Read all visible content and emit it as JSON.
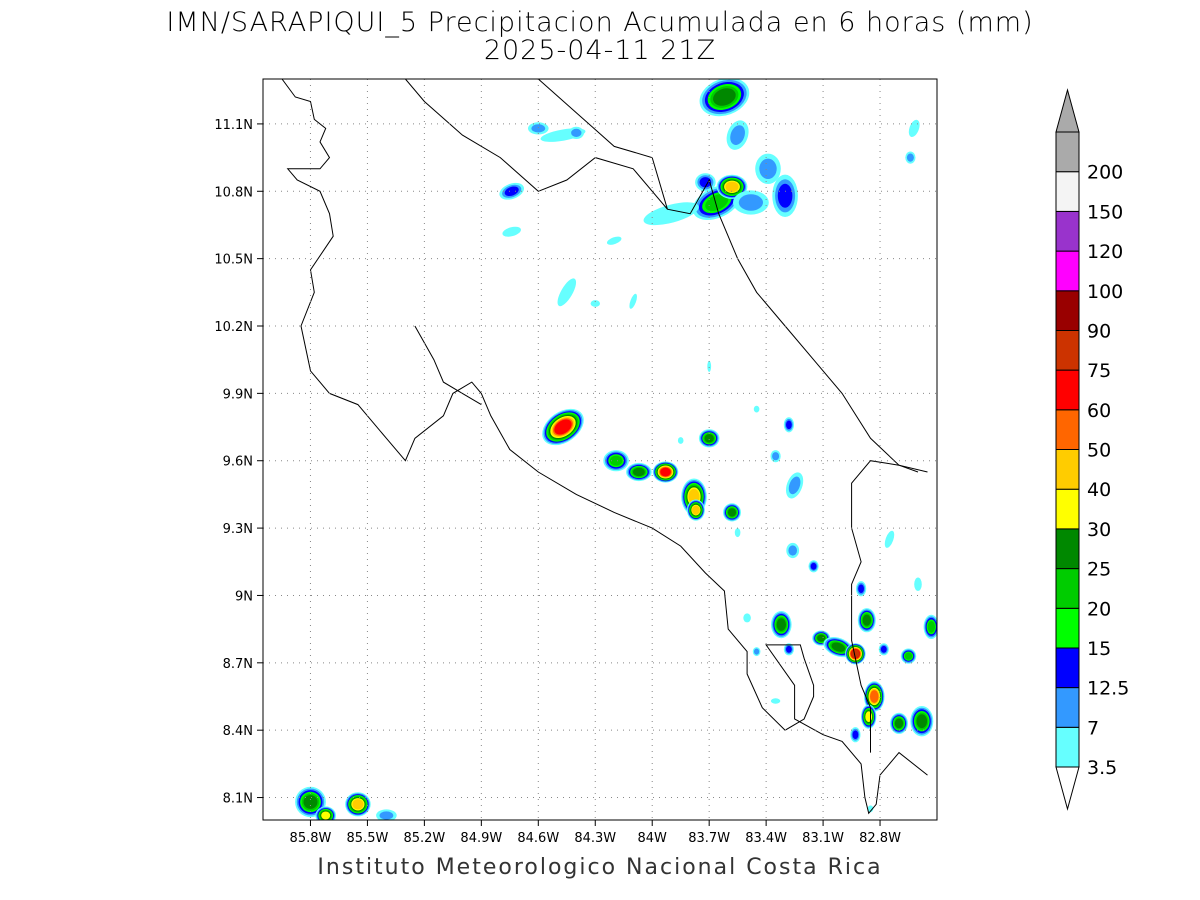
{
  "title_line1": "IMN/SARAPIQUI_5 Precipitacion Acumulada en 6 horas (mm)",
  "title_line2": "2025-04-11 21Z",
  "footer": "Instituto Meteorologico Nacional Costa Rica",
  "map": {
    "lon_range": [
      -86.05,
      -82.5
    ],
    "lat_range": [
      8.0,
      11.3
    ],
    "lat_ticks": [
      {
        "value": 11.1,
        "label": "11.1N"
      },
      {
        "value": 10.8,
        "label": "10.8N"
      },
      {
        "value": 10.5,
        "label": "10.5N"
      },
      {
        "value": 10.2,
        "label": "10.2N"
      },
      {
        "value": 9.9,
        "label": "9.9N"
      },
      {
        "value": 9.6,
        "label": "9.6N"
      },
      {
        "value": 9.3,
        "label": "9.3N"
      },
      {
        "value": 9.0,
        "label": "9N"
      },
      {
        "value": 8.7,
        "label": "8.7N"
      },
      {
        "value": 8.4,
        "label": "8.4N"
      },
      {
        "value": 8.1,
        "label": "8.1N"
      }
    ],
    "lon_ticks": [
      {
        "value": -85.8,
        "label": "85.8W"
      },
      {
        "value": -85.5,
        "label": "85.5W"
      },
      {
        "value": -85.2,
        "label": "85.2W"
      },
      {
        "value": -84.9,
        "label": "84.9W"
      },
      {
        "value": -84.6,
        "label": "84.6W"
      },
      {
        "value": -84.3,
        "label": "84.3W"
      },
      {
        "value": -84.0,
        "label": "84W"
      },
      {
        "value": -83.7,
        "label": "83.7W"
      },
      {
        "value": -83.4,
        "label": "83.4W"
      },
      {
        "value": -83.1,
        "label": "83.1W"
      },
      {
        "value": -82.8,
        "label": "82.8W"
      }
    ],
    "grid": true
  },
  "legend": {
    "levels": [
      {
        "label": "3.5",
        "color": "#66ffff"
      },
      {
        "label": "7",
        "color": "#3399ff"
      },
      {
        "label": "12.5",
        "color": "#0000ff"
      },
      {
        "label": "15",
        "color": "#00ff00"
      },
      {
        "label": "20",
        "color": "#00cc00"
      },
      {
        "label": "25",
        "color": "#008800"
      },
      {
        "label": "30",
        "color": "#ffff00"
      },
      {
        "label": "40",
        "color": "#ffcc00"
      },
      {
        "label": "50",
        "color": "#ff6600"
      },
      {
        "label": "60",
        "color": "#ff0000"
      },
      {
        "label": "75",
        "color": "#cc3300"
      },
      {
        "label": "90",
        "color": "#990000"
      },
      {
        "label": "100",
        "color": "#ff00ff"
      },
      {
        "label": "120",
        "color": "#9933cc"
      },
      {
        "label": "150",
        "color": "#f4f4f4"
      },
      {
        "label": "200",
        "color": "#aaaaaa"
      }
    ]
  },
  "precip_cells": [
    {
      "lon": -84.47,
      "lat": 9.75,
      "rx": 0.09,
      "ry": 0.05,
      "rot": -35,
      "max": 60
    },
    {
      "lon": -84.19,
      "lat": 9.6,
      "rx": 0.05,
      "ry": 0.035,
      "rot": 0,
      "max": 20
    },
    {
      "lon": -84.07,
      "lat": 9.55,
      "rx": 0.05,
      "ry": 0.03,
      "rot": 0,
      "max": 25
    },
    {
      "lon": -83.93,
      "lat": 9.55,
      "rx": 0.05,
      "ry": 0.035,
      "rot": 0,
      "max": 60
    },
    {
      "lon": -83.78,
      "lat": 9.44,
      "rx": 0.05,
      "ry": 0.06,
      "rot": 0,
      "max": 40
    },
    {
      "lon": -83.77,
      "lat": 9.38,
      "rx": 0.035,
      "ry": 0.035,
      "rot": 0,
      "max": 40
    },
    {
      "lon": -83.58,
      "lat": 9.37,
      "rx": 0.035,
      "ry": 0.03,
      "rot": 0,
      "max": 25
    },
    {
      "lon": -83.7,
      "lat": 9.7,
      "rx": 0.04,
      "ry": 0.03,
      "rot": 0,
      "max": 25
    },
    {
      "lon": -83.66,
      "lat": 10.75,
      "rx": 0.1,
      "ry": 0.05,
      "rot": -25,
      "max": 20
    },
    {
      "lon": -83.58,
      "lat": 10.82,
      "rx": 0.06,
      "ry": 0.04,
      "rot": 0,
      "max": 40
    },
    {
      "lon": -83.62,
      "lat": 11.22,
      "rx": 0.1,
      "ry": 0.06,
      "rot": -20,
      "max": 25
    },
    {
      "lon": -83.72,
      "lat": 10.84,
      "rx": 0.04,
      "ry": 0.03,
      "rot": 0,
      "max": 12.5
    },
    {
      "lon": -84.74,
      "lat": 10.8,
      "rx": 0.05,
      "ry": 0.025,
      "rot": -20,
      "max": 12.5
    },
    {
      "lon": -83.32,
      "lat": 8.87,
      "rx": 0.04,
      "ry": 0.045,
      "rot": 0,
      "max": 25
    },
    {
      "lon": -83.11,
      "lat": 8.81,
      "rx": 0.035,
      "ry": 0.025,
      "rot": 0,
      "max": 25
    },
    {
      "lon": -83.02,
      "lat": 8.77,
      "rx": 0.06,
      "ry": 0.03,
      "rot": 20,
      "max": 25
    },
    {
      "lon": -82.93,
      "lat": 8.74,
      "rx": 0.04,
      "ry": 0.035,
      "rot": 0,
      "max": 75
    },
    {
      "lon": -82.87,
      "lat": 8.89,
      "rx": 0.035,
      "ry": 0.04,
      "rot": 0,
      "max": 25
    },
    {
      "lon": -82.83,
      "lat": 8.55,
      "rx": 0.04,
      "ry": 0.05,
      "rot": 0,
      "max": 50
    },
    {
      "lon": -82.86,
      "lat": 8.46,
      "rx": 0.03,
      "ry": 0.04,
      "rot": 0,
      "max": 30
    },
    {
      "lon": -82.7,
      "lat": 8.43,
      "rx": 0.035,
      "ry": 0.035,
      "rot": 0,
      "max": 25
    },
    {
      "lon": -82.58,
      "lat": 8.44,
      "rx": 0.045,
      "ry": 0.05,
      "rot": 0,
      "max": 25
    },
    {
      "lon": -82.65,
      "lat": 8.73,
      "rx": 0.03,
      "ry": 0.025,
      "rot": 0,
      "max": 20
    },
    {
      "lon": -82.53,
      "lat": 8.86,
      "rx": 0.03,
      "ry": 0.04,
      "rot": 0,
      "max": 20
    },
    {
      "lon": -85.8,
      "lat": 8.08,
      "rx": 0.06,
      "ry": 0.05,
      "rot": 0,
      "max": 25
    },
    {
      "lon": -85.55,
      "lat": 8.07,
      "rx": 0.05,
      "ry": 0.04,
      "rot": 0,
      "max": 40
    },
    {
      "lon": -85.72,
      "lat": 8.02,
      "rx": 0.04,
      "ry": 0.03,
      "rot": 0,
      "max": 30
    },
    {
      "lon": -83.9,
      "lat": 10.7,
      "rx": 0.15,
      "ry": 0.04,
      "rot": -15,
      "max": 3.5
    },
    {
      "lon": -84.47,
      "lat": 11.05,
      "rx": 0.12,
      "ry": 0.025,
      "rot": -10,
      "max": 3.5
    },
    {
      "lon": -84.45,
      "lat": 10.35,
      "rx": 0.03,
      "ry": 0.07,
      "rot": 30,
      "max": 3.5
    },
    {
      "lon": -83.55,
      "lat": 11.05,
      "rx": 0.04,
      "ry": 0.05,
      "rot": 20,
      "max": 7
    },
    {
      "lon": -83.48,
      "lat": 10.75,
      "rx": 0.07,
      "ry": 0.04,
      "rot": 0,
      "max": 7
    },
    {
      "lon": -83.3,
      "lat": 10.78,
      "rx": 0.05,
      "ry": 0.07,
      "rot": 0,
      "max": 12.5
    },
    {
      "lon": -83.39,
      "lat": 10.9,
      "rx": 0.05,
      "ry": 0.05,
      "rot": 0,
      "max": 7
    },
    {
      "lon": -83.25,
      "lat": 9.49,
      "rx": 0.03,
      "ry": 0.045,
      "rot": 20,
      "max": 7
    },
    {
      "lon": -83.28,
      "lat": 9.76,
      "rx": 0.02,
      "ry": 0.025,
      "rot": 0,
      "max": 12.5
    },
    {
      "lon": -83.15,
      "lat": 9.13,
      "rx": 0.02,
      "ry": 0.02,
      "rot": 0,
      "max": 12.5
    },
    {
      "lon": -83.26,
      "lat": 9.2,
      "rx": 0.025,
      "ry": 0.025,
      "rot": 0,
      "max": 7
    },
    {
      "lon": -83.35,
      "lat": 9.62,
      "rx": 0.02,
      "ry": 0.02,
      "rot": 0,
      "max": 7
    },
    {
      "lon": -82.9,
      "lat": 9.03,
      "rx": 0.02,
      "ry": 0.025,
      "rot": 0,
      "max": 12.5
    },
    {
      "lon": -82.75,
      "lat": 9.25,
      "rx": 0.02,
      "ry": 0.04,
      "rot": 20,
      "max": 3.5
    },
    {
      "lon": -82.6,
      "lat": 9.05,
      "rx": 0.02,
      "ry": 0.03,
      "rot": 0,
      "max": 3.5
    },
    {
      "lon": -82.62,
      "lat": 11.08,
      "rx": 0.025,
      "ry": 0.04,
      "rot": 20,
      "max": 3.5
    },
    {
      "lon": -82.64,
      "lat": 10.95,
      "rx": 0.02,
      "ry": 0.02,
      "rot": 0,
      "max": 7
    },
    {
      "lon": -83.28,
      "lat": 8.76,
      "rx": 0.02,
      "ry": 0.02,
      "rot": 0,
      "max": 12.5
    },
    {
      "lon": -82.78,
      "lat": 8.76,
      "rx": 0.02,
      "ry": 0.02,
      "rot": 0,
      "max": 12.5
    },
    {
      "lon": -82.93,
      "lat": 8.38,
      "rx": 0.02,
      "ry": 0.025,
      "rot": 0,
      "max": 12.5
    },
    {
      "lon": -85.4,
      "lat": 8.02,
      "rx": 0.04,
      "ry": 0.02,
      "rot": 0,
      "max": 7
    },
    {
      "lon": -84.6,
      "lat": 11.08,
      "rx": 0.04,
      "ry": 0.02,
      "rot": 0,
      "max": 7
    },
    {
      "lon": -84.4,
      "lat": 11.06,
      "rx": 0.03,
      "ry": 0.02,
      "rot": 0,
      "max": 7
    },
    {
      "lon": -84.74,
      "lat": 10.62,
      "rx": 0.05,
      "ry": 0.02,
      "rot": -15,
      "max": 3.5
    },
    {
      "lon": -84.1,
      "lat": 10.31,
      "rx": 0.015,
      "ry": 0.035,
      "rot": 20,
      "max": 3.5
    },
    {
      "lon": -84.3,
      "lat": 10.3,
      "rx": 0.025,
      "ry": 0.015,
      "rot": 0,
      "max": 3.5
    },
    {
      "lon": -83.7,
      "lat": 10.02,
      "rx": 0.01,
      "ry": 0.025,
      "rot": 0,
      "max": 3.5
    },
    {
      "lon": -83.45,
      "lat": 9.83,
      "rx": 0.015,
      "ry": 0.015,
      "rot": 0,
      "max": 3.5
    },
    {
      "lon": -83.55,
      "lat": 9.28,
      "rx": 0.015,
      "ry": 0.02,
      "rot": 0,
      "max": 3.5
    },
    {
      "lon": -83.5,
      "lat": 8.9,
      "rx": 0.02,
      "ry": 0.02,
      "rot": 0,
      "max": 3.5
    },
    {
      "lon": -83.45,
      "lat": 8.75,
      "rx": 0.015,
      "ry": 0.015,
      "rot": 0,
      "max": 7
    },
    {
      "lon": -83.35,
      "lat": 8.53,
      "rx": 0.025,
      "ry": 0.012,
      "rot": 0,
      "max": 3.5
    },
    {
      "lon": -82.85,
      "lat": 8.05,
      "rx": 0.015,
      "ry": 0.015,
      "rot": 0,
      "max": 3.5
    },
    {
      "lon": -83.85,
      "lat": 9.69,
      "rx": 0.015,
      "ry": 0.015,
      "rot": 0,
      "max": 3.5
    },
    {
      "lon": -84.2,
      "lat": 10.58,
      "rx": 0.04,
      "ry": 0.015,
      "rot": -20,
      "max": 3.5
    }
  ],
  "coastlines": [
    [
      [
        -85.95,
        11.3
      ],
      [
        -85.88,
        11.22
      ],
      [
        -85.8,
        11.2
      ],
      [
        -85.78,
        11.12
      ],
      [
        -85.72,
        11.08
      ],
      [
        -85.75,
        11.02
      ],
      [
        -85.7,
        10.95
      ],
      [
        -85.75,
        10.9
      ],
      [
        -85.92,
        10.9
      ],
      [
        -85.87,
        10.85
      ],
      [
        -85.75,
        10.8
      ],
      [
        -85.7,
        10.7
      ],
      [
        -85.68,
        10.6
      ],
      [
        -85.8,
        10.45
      ],
      [
        -85.78,
        10.35
      ],
      [
        -85.85,
        10.2
      ],
      [
        -85.8,
        10.0
      ],
      [
        -85.7,
        9.9
      ],
      [
        -85.55,
        9.85
      ],
      [
        -85.4,
        9.7
      ],
      [
        -85.3,
        9.6
      ],
      [
        -85.25,
        9.7
      ],
      [
        -85.1,
        9.8
      ],
      [
        -85.05,
        9.9
      ],
      [
        -84.95,
        9.95
      ],
      [
        -84.9,
        9.9
      ],
      [
        -84.85,
        9.8
      ],
      [
        -84.75,
        9.65
      ],
      [
        -84.6,
        9.55
      ],
      [
        -84.4,
        9.45
      ],
      [
        -84.2,
        9.37
      ],
      [
        -84.0,
        9.3
      ],
      [
        -83.85,
        9.22
      ],
      [
        -83.72,
        9.1
      ],
      [
        -83.62,
        9.02
      ],
      [
        -83.6,
        8.85
      ],
      [
        -83.5,
        8.75
      ],
      [
        -83.5,
        8.65
      ],
      [
        -83.42,
        8.5
      ],
      [
        -83.3,
        8.4
      ],
      [
        -83.2,
        8.45
      ],
      [
        -83.15,
        8.55
      ],
      [
        -83.15,
        8.6
      ],
      [
        -83.2,
        8.72
      ],
      [
        -83.22,
        8.78
      ],
      [
        -83.4,
        8.78
      ],
      [
        -83.25,
        8.6
      ],
      [
        -83.25,
        8.45
      ],
      [
        -83.1,
        8.38
      ],
      [
        -83.0,
        8.35
      ],
      [
        -82.9,
        8.25
      ],
      [
        -82.88,
        8.1
      ],
      [
        -82.86,
        8.03
      ],
      [
        -82.82,
        8.07
      ],
      [
        -82.8,
        8.2
      ],
      [
        -82.7,
        8.3
      ],
      [
        -82.55,
        8.2
      ]
    ],
    [
      [
        -84.6,
        11.3
      ],
      [
        -84.4,
        11.15
      ],
      [
        -84.2,
        11.0
      ],
      [
        -84.0,
        10.95
      ],
      [
        -83.92,
        10.72
      ],
      [
        -83.8,
        10.7
      ],
      [
        -83.7,
        10.85
      ],
      [
        -83.65,
        10.7
      ],
      [
        -83.55,
        10.5
      ],
      [
        -83.45,
        10.35
      ],
      [
        -83.3,
        10.2
      ],
      [
        -83.15,
        10.05
      ],
      [
        -83.0,
        9.9
      ],
      [
        -82.85,
        9.7
      ],
      [
        -82.7,
        9.58
      ],
      [
        -82.55,
        9.55
      ]
    ],
    [
      [
        -85.3,
        11.3
      ],
      [
        -85.2,
        11.2
      ],
      [
        -85.0,
        11.05
      ],
      [
        -84.8,
        10.95
      ],
      [
        -84.6,
        10.8
      ],
      [
        -84.45,
        10.85
      ],
      [
        -84.3,
        10.95
      ],
      [
        -84.1,
        10.9
      ],
      [
        -83.92,
        10.72
      ]
    ],
    [
      [
        -82.85,
        8.3
      ],
      [
        -82.85,
        8.5
      ],
      [
        -82.9,
        8.6
      ],
      [
        -82.95,
        8.8
      ],
      [
        -82.95,
        9.05
      ],
      [
        -82.9,
        9.15
      ],
      [
        -82.95,
        9.3
      ],
      [
        -82.95,
        9.5
      ],
      [
        -82.85,
        9.6
      ],
      [
        -82.7,
        9.58
      ],
      [
        -82.6,
        9.55
      ]
    ],
    [
      [
        -85.25,
        10.2
      ],
      [
        -85.15,
        10.05
      ],
      [
        -85.1,
        9.95
      ],
      [
        -85.0,
        9.9
      ],
      [
        -84.9,
        9.85
      ]
    ]
  ]
}
